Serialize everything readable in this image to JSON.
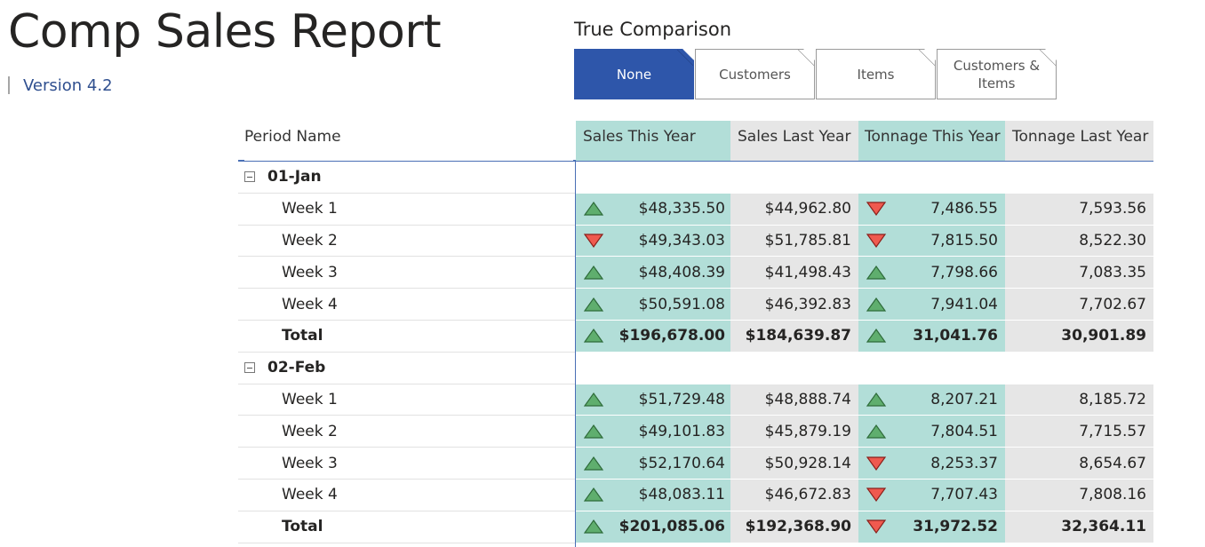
{
  "report": {
    "title": "Comp Sales Report",
    "version": "Version 4.2"
  },
  "comparison": {
    "title": "True Comparison",
    "tabs": [
      {
        "label": "None",
        "active": true
      },
      {
        "label": "Customers",
        "active": false
      },
      {
        "label": "Items",
        "active": false
      },
      {
        "label": "Customers & Items",
        "active": false
      }
    ]
  },
  "table": {
    "headers": {
      "period": "Period Name",
      "sales_this_year": "Sales This Year",
      "sales_last_year": "Sales Last Year",
      "tonnage_this_year": "Tonnage This Year",
      "tonnage_last_year": "Tonnage Last Year"
    },
    "groups": [
      {
        "name": "01-Jan",
        "rows": [
          {
            "label": "Week 1",
            "sty": "$48,335.50",
            "sty_dir": "up",
            "sly": "$44,962.80",
            "tty": "7,486.55",
            "tty_dir": "down",
            "tly": "7,593.56"
          },
          {
            "label": "Week 2",
            "sty": "$49,343.03",
            "sty_dir": "down",
            "sly": "$51,785.81",
            "tty": "7,815.50",
            "tty_dir": "down",
            "tly": "8,522.30"
          },
          {
            "label": "Week 3",
            "sty": "$48,408.39",
            "sty_dir": "up",
            "sly": "$41,498.43",
            "tty": "7,798.66",
            "tty_dir": "up",
            "tly": "7,083.35"
          },
          {
            "label": "Week 4",
            "sty": "$50,591.08",
            "sty_dir": "up",
            "sly": "$46,392.83",
            "tty": "7,941.04",
            "tty_dir": "up",
            "tly": "7,702.67"
          }
        ],
        "total": {
          "label": "Total",
          "sty": "$196,678.00",
          "sty_dir": "up",
          "sly": "$184,639.87",
          "tty": "31,041.76",
          "tty_dir": "up",
          "tly": "30,901.89"
        }
      },
      {
        "name": "02-Feb",
        "rows": [
          {
            "label": "Week 1",
            "sty": "$51,729.48",
            "sty_dir": "up",
            "sly": "$48,888.74",
            "tty": "8,207.21",
            "tty_dir": "up",
            "tly": "8,185.72"
          },
          {
            "label": "Week 2",
            "sty": "$49,101.83",
            "sty_dir": "up",
            "sly": "$45,879.19",
            "tty": "7,804.51",
            "tty_dir": "up",
            "tly": "7,715.57"
          },
          {
            "label": "Week 3",
            "sty": "$52,170.64",
            "sty_dir": "up",
            "sly": "$50,928.14",
            "tty": "8,253.37",
            "tty_dir": "down",
            "tly": "8,654.67"
          },
          {
            "label": "Week 4",
            "sty": "$48,083.11",
            "sty_dir": "up",
            "sly": "$46,672.83",
            "tty": "7,707.43",
            "tty_dir": "down",
            "tly": "7,808.16"
          }
        ],
        "total": {
          "label": "Total",
          "sty": "$201,085.06",
          "sty_dir": "up",
          "sly": "$192,368.90",
          "tty": "31,972.52",
          "tty_dir": "down",
          "tly": "32,364.11"
        }
      }
    ]
  },
  "colors": {
    "accent": "#2e56aa",
    "this_year_bg": "#b2ded8",
    "last_year_bg": "#e6e6e6",
    "up_fill": "#5fae6e",
    "up_stroke": "#2e6b3a",
    "down_fill": "#ef5a4f",
    "down_stroke": "#8a1f1a"
  }
}
